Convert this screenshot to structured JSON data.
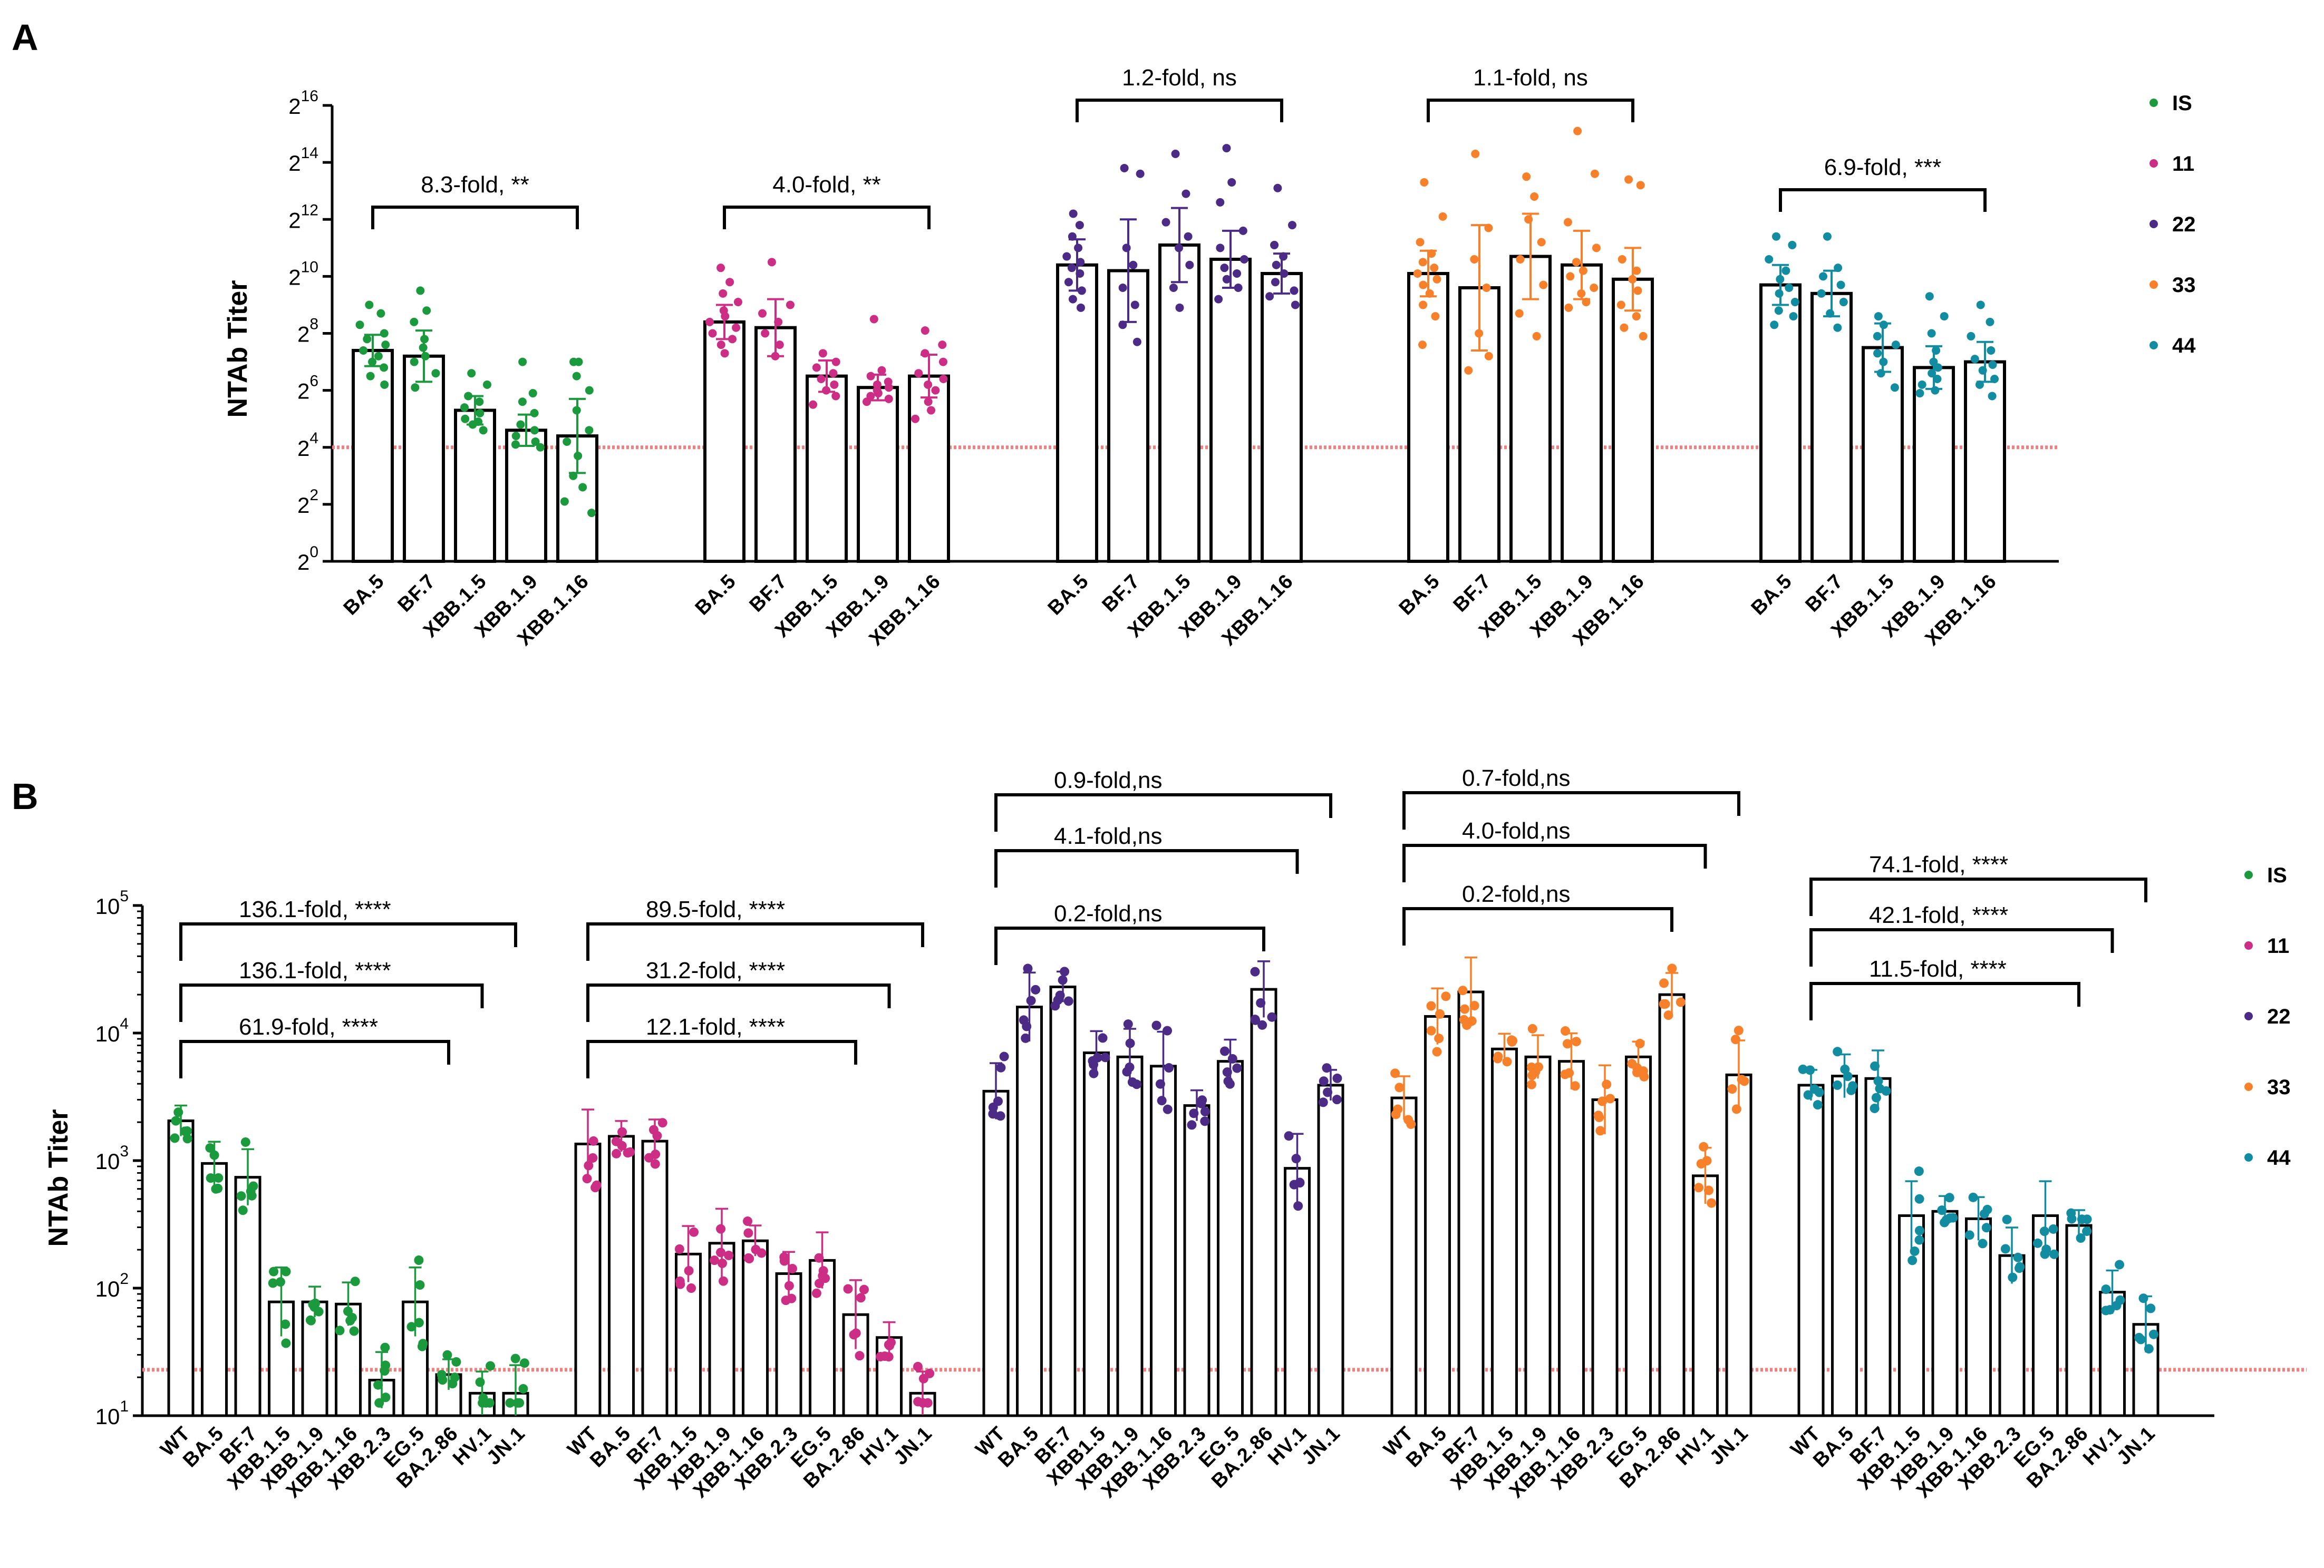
{
  "figure": {
    "panelA_letter": "A",
    "panelB_letter": "B"
  },
  "colors": {
    "IS": "#1a9a3c",
    "11": "#cc2e86",
    "22": "#4b2b86",
    "33": "#f7812a",
    "44": "#128ca0",
    "threshold": "#f08080"
  },
  "chart_data": [
    {
      "panel": "A",
      "type": "bar",
      "ylabel": "NTAb Titer",
      "yscale": "log2",
      "ylim_exponent": [
        0,
        16
      ],
      "yticks": [
        {
          "base": "2",
          "exp": "0",
          "value": 0
        },
        {
          "base": "2",
          "exp": "2",
          "value": 2
        },
        {
          "base": "2",
          "exp": "4",
          "value": 4
        },
        {
          "base": "2",
          "exp": "6",
          "value": 6
        },
        {
          "base": "2",
          "exp": "8",
          "value": 8
        },
        {
          "base": "2",
          "exp": "10",
          "value": 10
        },
        {
          "base": "2",
          "exp": "12",
          "value": 12
        },
        {
          "base": "2",
          "exp": "14",
          "value": 14
        },
        {
          "base": "2",
          "exp": "16",
          "value": 16
        }
      ],
      "threshold_log2": 4,
      "legend": [
        "IS",
        "11",
        "22",
        "33",
        "44"
      ],
      "groups": [
        {
          "name": "IS",
          "categories": [
            "BA.5",
            "BF.7",
            "XBB.1.5",
            "XBB.1.9",
            "XBB.1.16"
          ],
          "values": [
            7.4,
            7.2,
            5.3,
            4.6,
            4.4
          ],
          "sd": [
            0.55,
            0.9,
            0.5,
            0.55,
            1.3
          ],
          "comparison": {
            "from": 0,
            "to": 4,
            "label": "8.3-fold, **"
          },
          "points": [
            [
              9.0,
              8.7,
              8.3,
              8.0,
              7.8,
              7.6,
              7.4,
              7.2,
              7.0,
              6.8,
              6.5,
              6.2
            ],
            [
              9.5,
              8.8,
              8.4,
              7.8,
              7.5,
              7.2,
              7.0,
              6.6,
              6.1
            ],
            [
              6.6,
              6.2,
              5.8,
              5.6,
              5.4,
              5.2,
              5.0,
              4.9,
              4.8,
              4.6
            ],
            [
              7.0,
              5.9,
              5.6,
              5.2,
              4.8,
              4.6,
              4.4,
              4.2,
              4.1,
              4.0
            ],
            [
              7.0,
              7.0,
              6.5,
              6.0,
              5.3,
              4.6,
              4.2,
              3.7,
              3.0,
              2.6,
              2.1,
              1.7
            ]
          ]
        },
        {
          "name": "11",
          "categories": [
            "BA.5",
            "BF.7",
            "XBB.1.5",
            "XBB.1.9",
            "XBB.1.16"
          ],
          "values": [
            8.4,
            8.2,
            6.5,
            6.1,
            6.5
          ],
          "sd": [
            0.6,
            1.0,
            0.55,
            0.45,
            0.75
          ],
          "comparison": {
            "from": 0,
            "to": 4,
            "label": "4.0-fold, **"
          },
          "points": [
            [
              10.3,
              9.8,
              9.4,
              9.1,
              8.8,
              8.6,
              8.4,
              8.2,
              8.0,
              7.8,
              7.6,
              7.3
            ],
            [
              10.5,
              9.0,
              8.7,
              8.4,
              8.0,
              7.6,
              7.2
            ],
            [
              7.3,
              7.0,
              6.8,
              6.6,
              6.4,
              6.2,
              6.0,
              5.8,
              5.5
            ],
            [
              8.5,
              6.7,
              6.5,
              6.3,
              6.2,
              6.1,
              6.0,
              5.9,
              5.8,
              5.7,
              5.6
            ],
            [
              8.1,
              7.6,
              7.3,
              7.0,
              6.6,
              6.4,
              6.2,
              6.0,
              5.6,
              5.3,
              5.0
            ]
          ]
        },
        {
          "name": "22",
          "categories": [
            "BA.5",
            "BF.7",
            "XBB.1.5",
            "XBB.1.9",
            "XBB.1.16"
          ],
          "values": [
            10.4,
            10.2,
            11.1,
            10.6,
            10.1
          ],
          "sd": [
            0.9,
            1.8,
            1.3,
            1.0,
            0.7
          ],
          "comparison": {
            "from": 0,
            "to": 4,
            "label": "1.2-fold, ns"
          },
          "points": [
            [
              12.2,
              11.8,
              11.4,
              11.0,
              10.7,
              10.5,
              10.3,
              10.1,
              9.8,
              9.5,
              9.2,
              8.9
            ],
            [
              13.8,
              13.6,
              11.0,
              10.4,
              9.6,
              9.0,
              8.3,
              7.7
            ],
            [
              14.3,
              12.9,
              11.9,
              11.4,
              11.0,
              10.4,
              9.6,
              8.9
            ],
            [
              14.5,
              13.3,
              12.6,
              11.6,
              11.0,
              10.6,
              10.3,
              10.1,
              9.9,
              9.6,
              9.2
            ],
            [
              13.1,
              11.8,
              11.1,
              10.7,
              10.4,
              10.1,
              9.8,
              9.5,
              9.3,
              9.0
            ]
          ]
        },
        {
          "name": "33",
          "categories": [
            "BA.5",
            "BF.7",
            "XBB.1.5",
            "XBB.1.9",
            "XBB.1.16"
          ],
          "values": [
            10.1,
            9.6,
            10.7,
            10.4,
            9.9
          ],
          "sd": [
            0.8,
            2.2,
            1.5,
            1.2,
            1.1
          ],
          "comparison": {
            "from": 0,
            "to": 4,
            "label": "1.1-fold, ns"
          },
          "points": [
            [
              13.3,
              12.1,
              11.2,
              10.8,
              10.5,
              10.3,
              10.1,
              9.9,
              9.7,
              9.4,
              9.0,
              8.6,
              7.6
            ],
            [
              14.3,
              11.7,
              10.6,
              9.6,
              8.0,
              7.2,
              6.7
            ],
            [
              13.5,
              12.8,
              12.0,
              11.2,
              10.6,
              9.7,
              8.7,
              7.9
            ],
            [
              15.1,
              13.6,
              11.9,
              11.0,
              10.5,
              10.2,
              10.0,
              9.6,
              9.4,
              9.1,
              8.9
            ],
            [
              13.4,
              13.2,
              10.6,
              10.2,
              9.9,
              9.5,
              9.0,
              8.6,
              8.2,
              7.9
            ]
          ]
        },
        {
          "name": "44",
          "categories": [
            "BA.5",
            "BF.7",
            "XBB.1.5",
            "XBB.1.9",
            "XBB.1.16"
          ],
          "values": [
            9.7,
            9.4,
            7.5,
            6.8,
            7.0
          ],
          "sd": [
            0.7,
            0.8,
            0.85,
            0.75,
            0.7
          ],
          "comparison": {
            "from": 0,
            "to": 4,
            "label": "6.9-fold, ***"
          },
          "points": [
            [
              11.4,
              11.1,
              10.6,
              10.2,
              9.9,
              9.6,
              9.4,
              9.1,
              8.8,
              8.6,
              8.3
            ],
            [
              11.4,
              10.3,
              10.0,
              9.7,
              9.4,
              9.1,
              8.7,
              8.2
            ],
            [
              8.6,
              8.3,
              7.9,
              7.6,
              7.3,
              7.0,
              6.6,
              6.1
            ],
            [
              9.3,
              8.6,
              8.0,
              7.4,
              7.0,
              6.8,
              6.6,
              6.4,
              6.2,
              6.0,
              5.9
            ],
            [
              9.0,
              8.4,
              7.9,
              7.4,
              7.1,
              6.9,
              6.7,
              6.4,
              6.2,
              5.8
            ]
          ]
        }
      ]
    },
    {
      "panel": "B",
      "type": "bar",
      "ylabel": "NTAb Titer",
      "yscale": "log10",
      "ylim_exponent": [
        1,
        5
      ],
      "yticks": [
        {
          "base": "10",
          "exp": "1",
          "value": 1
        },
        {
          "base": "10",
          "exp": "2",
          "value": 2
        },
        {
          "base": "10",
          "exp": "3",
          "value": 3
        },
        {
          "base": "10",
          "exp": "4",
          "value": 4
        },
        {
          "base": "10",
          "exp": "5",
          "value": 5
        }
      ],
      "threshold_log10": 1.36,
      "legend": [
        "IS",
        "11",
        "22",
        "33",
        "44"
      ],
      "groups": [
        {
          "name": "IS",
          "categories": [
            "WT",
            "BA.5",
            "BF.7",
            "XBB.1.5",
            "XBB.1.9",
            "XBB.1.16",
            "XBB.2.3",
            "EG.5",
            "BA.2.86",
            "HV.1",
            "JN.1"
          ],
          "values": [
            2050,
            950,
            740,
            78,
            78,
            75,
            19,
            78,
            21,
            15,
            15
          ],
          "comparisons": [
            {
              "to": 8,
              "label": "61.9-fold, ****"
            },
            {
              "to": 9,
              "label": "136.1-fold, ****"
            },
            {
              "to": 10,
              "label": "136.1-fold, ****"
            }
          ]
        },
        {
          "name": "11",
          "categories": [
            "WT",
            "BA.5",
            "BF.7",
            "XBB.1.5",
            "XBB.1.9",
            "XBB.1.16",
            "XBB.2.3",
            "EG.5",
            "BA.2.86",
            "HV.1",
            "JN.1"
          ],
          "values": [
            1350,
            1550,
            1420,
            185,
            225,
            235,
            130,
            165,
            62,
            41,
            15
          ],
          "comparisons": [
            {
              "to": 8,
              "label": "12.1-fold, ****"
            },
            {
              "to": 9,
              "label": "31.2-fold, ****"
            },
            {
              "to": 10,
              "label": "89.5-fold, ****"
            }
          ]
        },
        {
          "name": "22",
          "categories": [
            "WT",
            "BA.5",
            "BF.7",
            "XBB1.5",
            "XBB.1.9",
            "XBB.1.16",
            "XBB.2.3",
            "EG.5",
            "BA.2.86",
            "HV.1",
            "JN.1"
          ],
          "values": [
            3500,
            16000,
            23000,
            7000,
            6500,
            5500,
            2700,
            6000,
            22000,
            870,
            3900
          ],
          "comparisons": [
            {
              "to": 8,
              "label": "0.2-fold,ns"
            },
            {
              "to": 9,
              "label": "4.1-fold,ns"
            },
            {
              "to": 10,
              "label": "0.9-fold,ns"
            }
          ]
        },
        {
          "name": "33",
          "categories": [
            "WT",
            "BA.5",
            "BF.7",
            "XBB.1.5",
            "XBB.1.9",
            "XBB.1.16",
            "XBB.2.3",
            "EG.5",
            "BA.2.86",
            "HV.1",
            "JN.1"
          ],
          "values": [
            3100,
            13500,
            21000,
            7500,
            6500,
            6000,
            3000,
            6500,
            20000,
            760,
            4700
          ],
          "comparisons": [
            {
              "to": 8,
              "label": "0.2-fold,ns"
            },
            {
              "to": 9,
              "label": "4.0-fold,ns"
            },
            {
              "to": 10,
              "label": "0.7-fold,ns"
            }
          ]
        },
        {
          "name": "44",
          "categories": [
            "WT",
            "BA.5",
            "BF.7",
            "XBB.1.5",
            "XBB.1.9",
            "XBB.1.16",
            "XBB.2.3",
            "EG.5",
            "BA.2.86",
            "HV.1",
            "JN.1"
          ],
          "values": [
            3900,
            4600,
            4400,
            370,
            400,
            350,
            180,
            370,
            310,
            93,
            52
          ],
          "comparisons": [
            {
              "to": 8,
              "label": "11.5-fold, ****"
            },
            {
              "to": 9,
              "label": "42.1-fold, ****"
            },
            {
              "to": 10,
              "label": "74.1-fold, ****"
            }
          ]
        }
      ]
    }
  ]
}
